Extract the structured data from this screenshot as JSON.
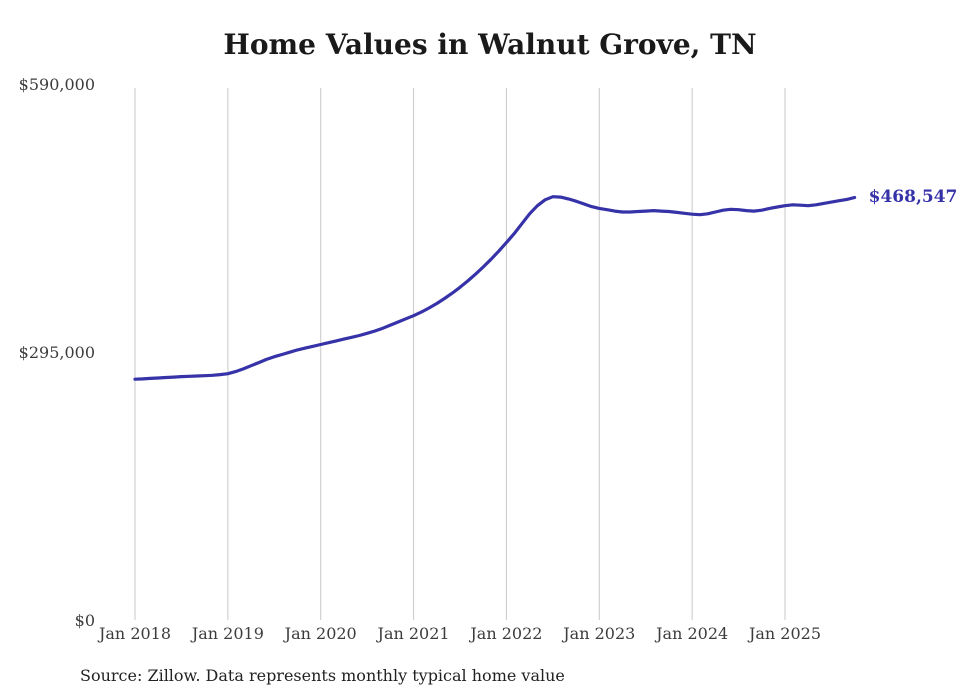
{
  "chart_data": {
    "type": "line",
    "title": "Home Values in Walnut Grove, TN",
    "source": "Source: Zillow. Data represents monthly typical home value",
    "end_label": "$468,547",
    "latest_value": 468547,
    "line_color": "#3632a8",
    "grid_color": "#c9c9c9",
    "ylim": [
      0,
      590000
    ],
    "grid": "vertical-only",
    "legend": "none",
    "y_ticks": [
      {
        "value": 0,
        "label": "$0"
      },
      {
        "value": 295000,
        "label": "$295,000"
      },
      {
        "value": 590000,
        "label": "$590,000"
      }
    ],
    "x_ticks": [
      "Jan 2018",
      "Jan 2019",
      "Jan 2020",
      "Jan 2021",
      "Jan 2022",
      "Jan 2023",
      "Jan 2024",
      "Jan 2025"
    ],
    "start": {
      "year": 2018,
      "month": "Jan"
    },
    "frequency": "monthly",
    "series": [
      {
        "name": "Typical home value",
        "values": [
          267000,
          267400,
          267900,
          268400,
          268900,
          269400,
          269900,
          270300,
          270600,
          270900,
          271400,
          272100,
          273200,
          275500,
          278500,
          282000,
          285500,
          289000,
          292000,
          294500,
          297000,
          299500,
          301500,
          303500,
          305500,
          307500,
          309500,
          311500,
          313500,
          315500,
          318000,
          320500,
          323500,
          327000,
          330500,
          334000,
          337500,
          341500,
          346000,
          351000,
          356500,
          362500,
          369000,
          376000,
          383500,
          391500,
          400000,
          409000,
          418500,
          428500,
          439500,
          450500,
          459500,
          466000,
          469500,
          469000,
          467000,
          464500,
          461500,
          458500,
          456500,
          455000,
          453500,
          452500,
          452500,
          453000,
          453500,
          454000,
          453500,
          453000,
          452000,
          451000,
          450000,
          449500,
          450500,
          452500,
          454500,
          455500,
          455000,
          454000,
          453500,
          454500,
          456500,
          458000,
          459500,
          460500,
          460000,
          459500,
          460500,
          462000,
          463500,
          465000,
          466500,
          468547
        ]
      }
    ]
  }
}
